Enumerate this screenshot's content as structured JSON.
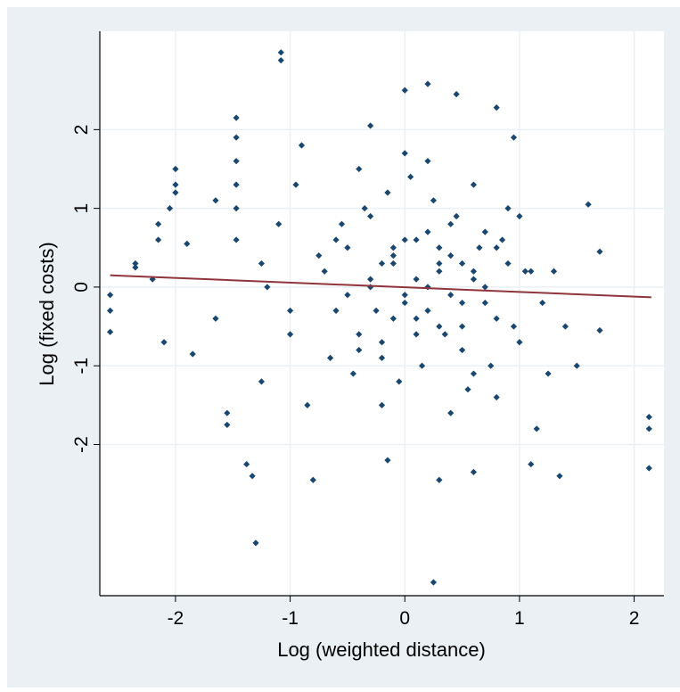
{
  "chart_data": {
    "type": "scatter",
    "x_label": "Log (weighted distance)",
    "y_label": "Log (fixed costs)",
    "xlim": [
      -2.66,
      2.26
    ],
    "ylim": [
      -3.92,
      3.25
    ],
    "xticks": [
      -2,
      -1,
      0,
      1,
      2
    ],
    "yticks": [
      -2,
      -1,
      0,
      1,
      2
    ],
    "grid": true,
    "series": [
      {
        "color": "#1a476f",
        "x": [
          -1.08,
          -1.08,
          -1.3,
          0.25,
          2.13,
          2.13,
          2.13,
          -2.57,
          -2.57,
          -2.57,
          -2.35,
          -2.35,
          -2.0,
          -2.0,
          -2.0,
          -2.05,
          -2.15,
          -2.15,
          -2.1,
          -1.85,
          -1.47,
          -1.47,
          -1.47,
          -1.47,
          -1.47,
          -1.47,
          -1.55,
          -1.55,
          -1.38,
          -1.33,
          -0.8,
          0.2,
          0.0,
          0.45,
          0.8,
          1.1,
          1.35,
          1.6,
          1.7,
          1.7,
          1.5,
          -0.9,
          -0.3,
          0.6,
          0.3,
          -0.15,
          -2.2,
          -1.9,
          -1.65,
          -1.65,
          -1.25,
          -1.25,
          -1.1,
          -1.0,
          -0.95,
          -0.85,
          -0.7,
          -0.6,
          -0.5,
          -0.4,
          -0.3,
          -0.2,
          -0.1,
          0.0,
          0.1,
          0.2,
          0.3,
          0.4,
          0.5,
          0.6,
          0.7,
          0.8,
          0.9,
          1.0,
          1.1,
          1.2,
          -0.65,
          -0.55,
          -0.45,
          -0.35,
          -0.25,
          -0.15,
          -0.05,
          0.05,
          0.15,
          0.25,
          0.35,
          0.45,
          0.55,
          0.65,
          0.75,
          0.85,
          0.95,
          1.05,
          -0.6,
          -0.4,
          -0.2,
          0.0,
          0.2,
          0.4,
          0.6,
          0.8,
          1.0,
          -0.5,
          -0.3,
          -0.1,
          0.1,
          0.3,
          0.5,
          0.7,
          0.9,
          -0.4,
          -0.2,
          0.0,
          0.2,
          0.4,
          0.6,
          0.8,
          -0.3,
          -0.1,
          0.1,
          0.3,
          0.5,
          0.7,
          -0.2,
          0.0,
          0.2,
          0.4,
          0.6,
          -0.1,
          0.1,
          0.3,
          0.5,
          1.3,
          1.4,
          1.25,
          -1.2,
          -1.0,
          -0.75,
          0.95,
          1.15
        ],
        "values": [
          2.98,
          2.88,
          -3.25,
          -3.75,
          -1.65,
          -1.8,
          -2.3,
          -0.1,
          -0.3,
          -0.57,
          0.3,
          0.25,
          1.5,
          1.3,
          1.2,
          1.0,
          0.8,
          0.6,
          -0.7,
          -0.85,
          2.15,
          1.9,
          1.6,
          1.3,
          1.0,
          0.6,
          -1.6,
          -1.75,
          -2.25,
          -2.4,
          -2.45,
          2.58,
          2.5,
          2.45,
          2.28,
          -2.25,
          -2.4,
          1.05,
          0.45,
          -0.55,
          -1.0,
          1.8,
          2.05,
          -2.35,
          -2.45,
          -2.2,
          0.1,
          0.55,
          1.1,
          -0.4,
          -1.2,
          0.3,
          0.8,
          -0.6,
          1.3,
          -1.5,
          0.2,
          -0.3,
          0.5,
          -0.6,
          0.9,
          -0.9,
          0.3,
          -0.2,
          0.6,
          0.0,
          -0.5,
          0.4,
          -0.8,
          0.1,
          0.7,
          -0.4,
          0.3,
          -0.7,
          0.2,
          -0.2,
          -0.9,
          0.8,
          -1.1,
          1.0,
          -0.3,
          1.2,
          -1.2,
          1.4,
          -1.0,
          1.1,
          -0.6,
          0.9,
          -1.3,
          0.5,
          -1.0,
          0.6,
          -0.5,
          0.2,
          0.6,
          1.5,
          -1.5,
          1.7,
          1.6,
          -1.6,
          1.3,
          -1.4,
          0.9,
          -0.1,
          0.1,
          0.4,
          -0.4,
          0.2,
          -0.2,
          0.0,
          1.0,
          -0.8,
          -0.7,
          -0.1,
          0.7,
          0.8,
          -1.1,
          0.5,
          0.0,
          0.5,
          -0.6,
          0.5,
          0.3,
          -0.2,
          0.3,
          0.6,
          -0.3,
          -0.1,
          0.2,
          -0.4,
          0.1,
          0.3,
          -0.5,
          0.2,
          -0.5,
          -1.1,
          0.0,
          -0.3,
          0.4,
          1.9,
          -1.8
        ]
      }
    ],
    "fit_line": {
      "color": "#90353b",
      "x": [
        -2.57,
        2.15
      ],
      "values": [
        0.15,
        -0.13
      ]
    }
  }
}
